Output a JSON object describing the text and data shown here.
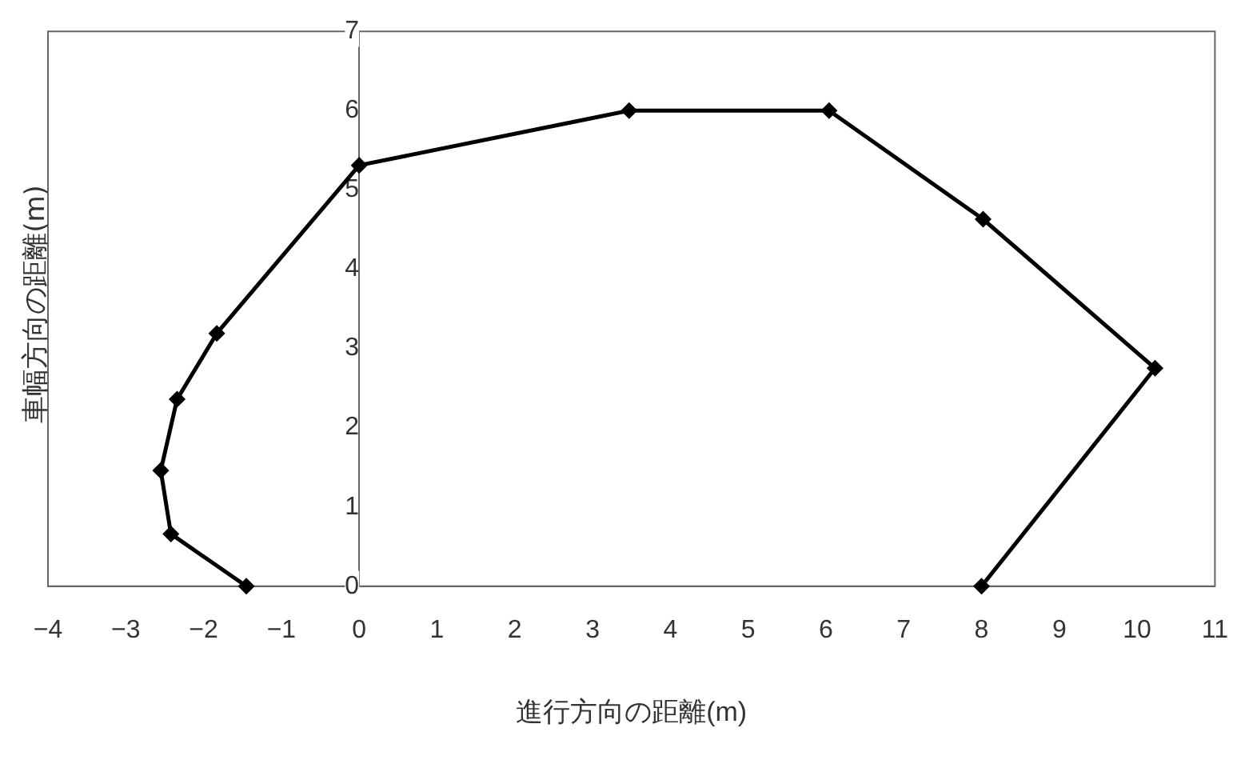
{
  "chart_data": {
    "type": "line",
    "xlabel": "進行方向の距離(m)",
    "ylabel": "車幅方向の距離(m)",
    "x": [
      -1.45,
      -2.42,
      -2.55,
      -2.34,
      -1.83,
      0,
      3.47,
      6.04,
      8.02,
      10.23,
      8.0
    ],
    "series": [
      {
        "color": "#000000",
        "values": [
          0,
          0.66,
          1.46,
          2.36,
          3.19,
          5.31,
          6.0,
          6.0,
          4.63,
          2.75,
          0
        ]
      }
    ],
    "xlim": [
      -4,
      11
    ],
    "xticks": [
      -4,
      -3,
      -2,
      -1,
      0,
      1,
      2,
      3,
      4,
      5,
      6,
      7,
      8,
      9,
      10,
      11
    ],
    "ylim": [
      0,
      7
    ],
    "yticks": [
      0,
      1,
      2,
      3,
      4,
      5,
      6,
      7
    ],
    "grid": false,
    "legend": false,
    "marker": "diamond",
    "line_style": "solid"
  }
}
